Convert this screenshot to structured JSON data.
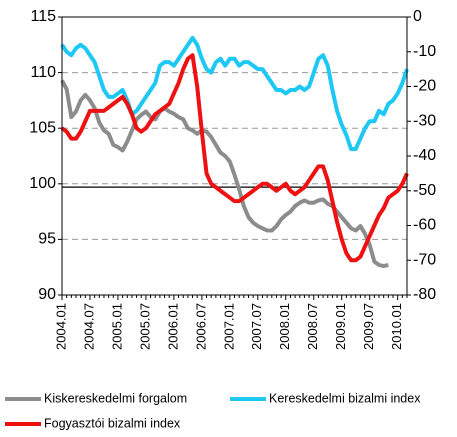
{
  "chart_data": {
    "type": "line",
    "categories": [
      "2004.01",
      null,
      null,
      null,
      null,
      null,
      "2004.07",
      null,
      null,
      null,
      null,
      null,
      "2005.01",
      null,
      null,
      null,
      null,
      null,
      "2005.07",
      null,
      null,
      null,
      null,
      null,
      "2006.01",
      null,
      null,
      null,
      null,
      null,
      "2006.07",
      null,
      null,
      null,
      null,
      null,
      "2007.01",
      null,
      null,
      null,
      null,
      null,
      "2007.07",
      null,
      null,
      null,
      null,
      null,
      "2008.01",
      null,
      null,
      null,
      null,
      null,
      "2008.07",
      null,
      null,
      null,
      null,
      null,
      "2009.01",
      null,
      null,
      null,
      null,
      null,
      "2009.07",
      null,
      null,
      null,
      null,
      null,
      "2010.01",
      null,
      null
    ],
    "series": [
      {
        "name": "Kiskereskedelmi forgalom",
        "color": "#8c8c8c",
        "axis": "y",
        "values": [
          109.3,
          108.5,
          106.0,
          106.5,
          107.5,
          108.0,
          107.5,
          106.8,
          105.5,
          104.8,
          104.5,
          103.5,
          103.3,
          103.0,
          103.8,
          104.8,
          105.8,
          106.2,
          106.5,
          106.0,
          105.8,
          106.5,
          106.8,
          106.5,
          106.3,
          106.0,
          105.8,
          105.0,
          104.8,
          104.5,
          104.8,
          104.7,
          104.2,
          103.5,
          102.8,
          102.5,
          102.0,
          100.8,
          99.5,
          98.0,
          97.0,
          96.5,
          96.2,
          96.0,
          95.8,
          95.8,
          96.2,
          96.8,
          97.2,
          97.5,
          98.0,
          98.3,
          98.5,
          98.3,
          98.3,
          98.5,
          98.6,
          98.2,
          98.0,
          97.5,
          97.0,
          96.5,
          96.0,
          95.8,
          96.2,
          95.5,
          94.5,
          93.0,
          92.7,
          92.6,
          92.7,
          null,
          null,
          null,
          null
        ]
      },
      {
        "name": "Kereskedelmi bizalmi index",
        "color": "#1ec8f5",
        "axis": "y2",
        "values": [
          -8,
          -10,
          -11,
          -9,
          -8,
          -9,
          -11,
          -13,
          -17,
          -21,
          -23,
          -23,
          -22,
          -21,
          -24,
          -28,
          -27,
          -25,
          -23,
          -21,
          -19,
          -14,
          -13,
          -13,
          -14,
          -12,
          -10,
          -8,
          -6,
          -8,
          -12,
          -15,
          -16,
          -13,
          -12,
          -14,
          -12,
          -12,
          -14,
          -13,
          -13,
          -14,
          -15,
          -15,
          -17,
          -19,
          -21,
          -21,
          -22,
          -21,
          -21,
          -20,
          -21,
          -20,
          -16,
          -12,
          -11,
          -14,
          -21,
          -27,
          -31,
          -34,
          -38,
          -38,
          -35,
          -32,
          -30,
          -30,
          -27,
          -28,
          -25,
          -24,
          -22,
          -19,
          -15
        ]
      },
      {
        "name": "Fogyasztói bizalmi index",
        "color": "#ee1111",
        "axis": "y2",
        "values": [
          -32,
          -33,
          -35,
          -35,
          -33,
          -30,
          -27,
          -27,
          -27,
          -27,
          -26,
          -25,
          -24,
          -23,
          -25,
          -28,
          -32,
          -33,
          -32,
          -30,
          -28,
          -27,
          -26,
          -25,
          -22,
          -19,
          -15,
          -12,
          -11,
          -20,
          -33,
          -45,
          -48,
          -49,
          -50,
          -51,
          -52,
          -53,
          -53,
          -52,
          -51,
          -50,
          -49,
          -48,
          -48,
          -49,
          -50,
          -49,
          -48,
          -50,
          -51,
          -50,
          -49,
          -47,
          -45,
          -43,
          -43,
          -47,
          -53,
          -59,
          -64,
          -68,
          -70,
          -70,
          -69,
          -66,
          -63,
          -60,
          -57,
          -55,
          -52,
          -51,
          -50,
          -48,
          -45
        ]
      }
    ],
    "ylim": [
      90,
      115
    ],
    "yticks": [
      90,
      95,
      100,
      105,
      110,
      115
    ],
    "y2lim": [
      -80,
      0
    ],
    "y2ticks": [
      -80,
      -70,
      -60,
      -50,
      -40,
      -30,
      -20,
      -10,
      0
    ],
    "grid": true,
    "reference_line": 99.7,
    "legend": "bottom"
  }
}
